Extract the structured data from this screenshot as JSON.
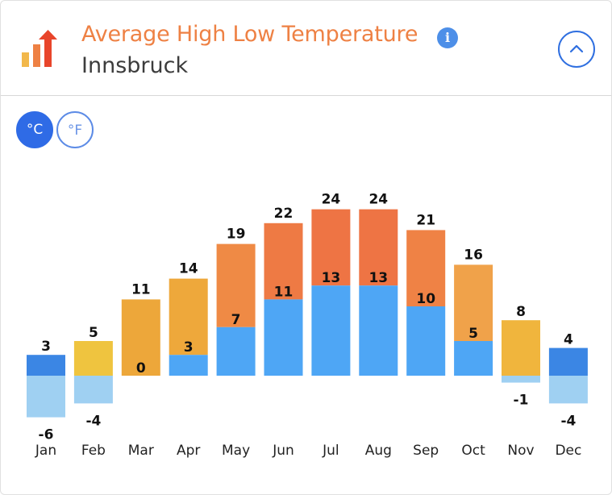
{
  "header": {
    "title": "Average High Low Temperature",
    "subtitle": "Innsbruck",
    "info_icon": "info-icon",
    "collapse_icon": "chevron-up-icon",
    "logo_icon": "bar-chart-arrow-icon"
  },
  "units": {
    "celsius_label": "°C",
    "fahrenheit_label": "°F",
    "selected": "°C"
  },
  "colors": {
    "title": "#ee8144",
    "low_above_zero": "#4ea6f5",
    "low_below_zero": "#9fd0f2",
    "selected_unit": "#2f6be6"
  },
  "chart_data": {
    "type": "bar",
    "categories": [
      "Jan",
      "Feb",
      "Mar",
      "Apr",
      "May",
      "Jun",
      "Jul",
      "Aug",
      "Sep",
      "Oct",
      "Nov",
      "Dec"
    ],
    "series": [
      {
        "name": "High",
        "values": [
          3,
          5,
          11,
          14,
          19,
          22,
          24,
          24,
          21,
          16,
          8,
          4
        ]
      },
      {
        "name": "Low",
        "values": [
          -6,
          -4,
          0,
          3,
          7,
          11,
          13,
          13,
          10,
          5,
          -1,
          -4
        ]
      }
    ],
    "high_colors": [
      "#3b86e4",
      "#efc43f",
      "#eda73a",
      "#eea83b",
      "#ef8a45",
      "#ee7a44",
      "#ee7444",
      "#ee7444",
      "#ef8245",
      "#f0a24a",
      "#f0b53d",
      "#3b86e4"
    ],
    "unit": "°C",
    "ylim": [
      -6,
      24
    ],
    "title": "",
    "xlabel": "",
    "ylabel": ""
  }
}
